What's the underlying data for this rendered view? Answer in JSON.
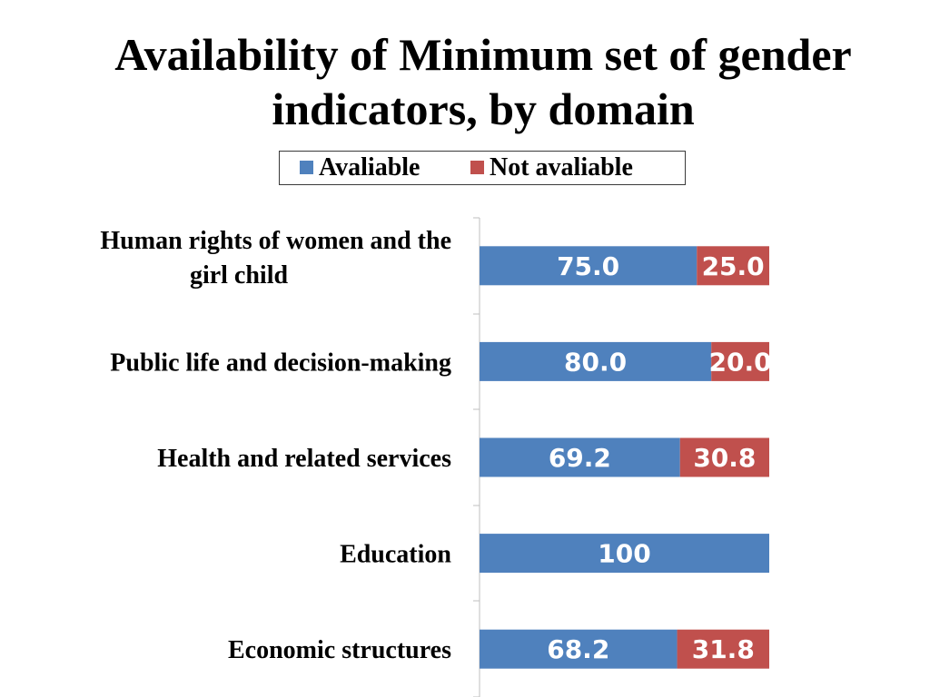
{
  "chart_data": {
    "type": "bar",
    "orientation": "horizontal",
    "stacked": true,
    "title": "Availability of Minimum set of gender indicators, by domain",
    "title_lines": [
      "Availability of Minimum set of gender",
      "indicators, by domain"
    ],
    "categories": [
      "Human rights of women and the girl child",
      "Public life and decision-making",
      "Health and related services",
      "Education",
      "Economic structures"
    ],
    "category_label_lines": [
      [
        "Human rights of women and the",
        "girl child"
      ],
      [
        "Public life and decision-making"
      ],
      [
        "Health and related services"
      ],
      [
        "Education"
      ],
      [
        "Economic structures"
      ]
    ],
    "series": [
      {
        "name": "Avaliable",
        "color": "#4f81bd",
        "values": [
          75.0,
          80.0,
          69.2,
          100,
          68.2
        ],
        "labels": [
          "75.0",
          "80.0",
          "69.2",
          "100",
          "68.2"
        ]
      },
      {
        "name": "Not avaliable",
        "color": "#c0504d",
        "values": [
          25.0,
          20.0,
          30.8,
          0,
          31.8
        ],
        "labels": [
          "25.0",
          "20.0",
          "30.8",
          "",
          "31.8"
        ]
      }
    ],
    "xlim": [
      0,
      100
    ],
    "legend_position": "top",
    "grid": false,
    "axis_color": "#bfbfbf"
  }
}
